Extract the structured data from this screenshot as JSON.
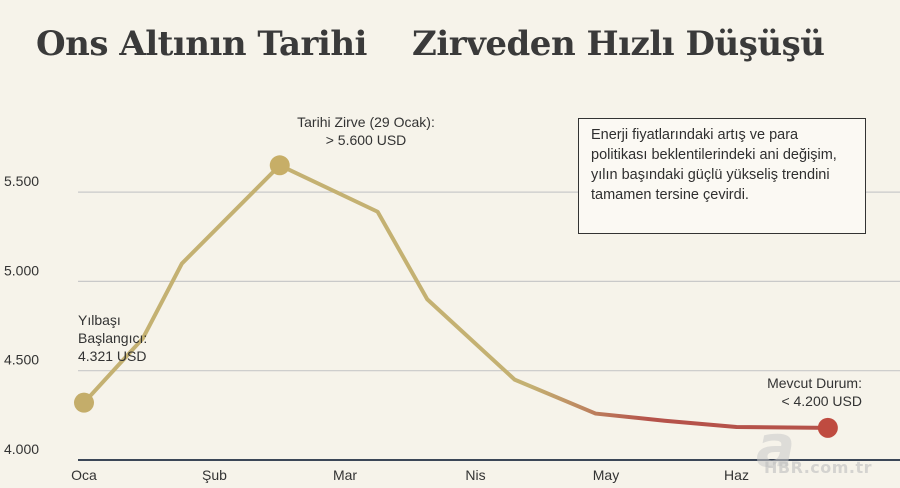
{
  "header": {
    "title_left": "Ons Altının Tarihi",
    "title_right": "Zirveden Hızlı Düşüşü"
  },
  "note": {
    "text": "Enerji fiyatlarındaki artış ve para politikası beklentilerindeki ani değişim, yılın başındaki güçlü yükseliş trendini tamamen tersine çevirdi."
  },
  "watermark": {
    "letter": "a",
    "text": "HBR.com.tr"
  },
  "colors": {
    "rise": "#c4b172",
    "fall": "#b5524a",
    "start_dot": "#c4ad6a",
    "peak_dot": "#c7ae67",
    "end_dot": "#bf4b40",
    "grid": "#c9c9c9",
    "axis": "#3b4657"
  },
  "chart_data": {
    "type": "line",
    "categories": [
      "Oca",
      "Şub",
      "Mar",
      "Nis",
      "May",
      "Haz"
    ],
    "yticks": [
      "4.000",
      "4.500",
      "5.000",
      "5.500"
    ],
    "ylim": [
      4000,
      5700
    ],
    "series": [
      {
        "x": [
          0,
          0.45,
          0.75,
          1.5,
          2.25,
          2.63,
          3.3,
          3.92,
          4.45,
          5.0,
          5.7
        ],
        "y": [
          4321,
          4680,
          5100,
          5650,
          5390,
          4900,
          4450,
          4260,
          4220,
          4185,
          4180
        ]
      }
    ],
    "annotations": {
      "start": "Yılbaşı Başlangıcı: 4.321 USD",
      "peak": "Tarihi Zirve (29 Ocak): > 5.600 USD",
      "end": "Mevcut Durum: < 4.200 USD"
    }
  }
}
